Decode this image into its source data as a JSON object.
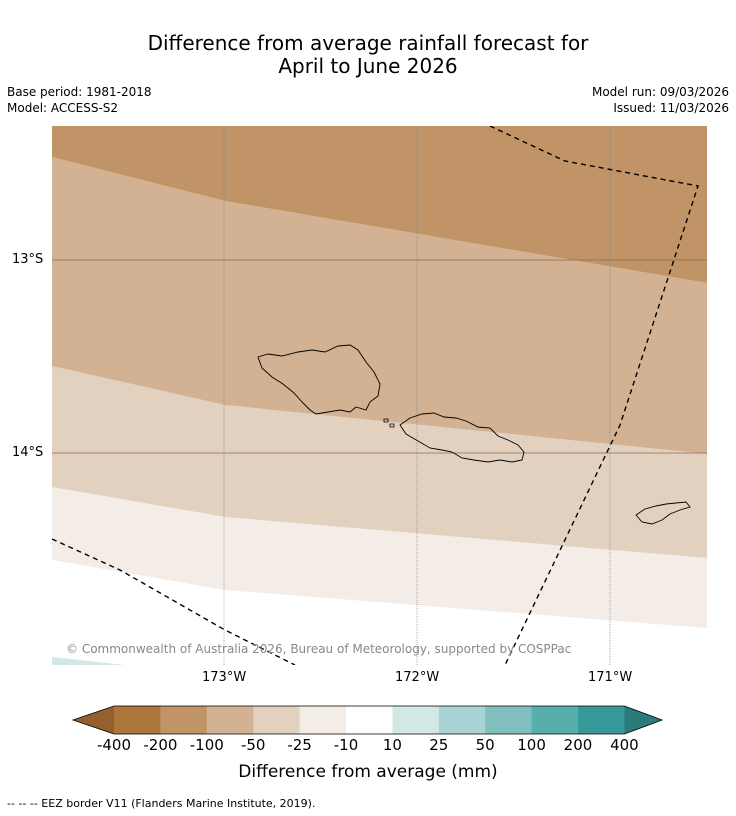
{
  "title_line1": "Difference from average rainfall forecast for",
  "title_line2": "April to June 2026",
  "meta_left": [
    "Base period: 1981-2018",
    "Model: ACCESS-S2"
  ],
  "meta_right": [
    "Model run: 09/03/2026",
    "Issued: 11/03/2026"
  ],
  "lat_labels": [
    "13°S",
    "14°S"
  ],
  "lon_labels": [
    "173°W",
    "172°W",
    "171°W"
  ],
  "copyright": "© Commonwealth of Australia 2026, Bureau of Meteorology, supported by COSPPac",
  "colorbar": {
    "title": "Difference from average (mm)",
    "tick_labels": [
      "-400",
      "-200",
      "-100",
      "-50",
      "-25",
      "-10",
      "10",
      "25",
      "50",
      "100",
      "200",
      "400"
    ],
    "colors": [
      "#ad773c",
      "#c09467",
      "#d2b293",
      "#e3d1bf",
      "#f4ece6",
      "#ffffff",
      "#d1e8e7",
      "#aad3d3",
      "#82c0c0",
      "#58adad",
      "#349998"
    ],
    "under_color": "#955f2f",
    "over_color": "#2a7b7a"
  },
  "footer": "--  --  -- EEZ border V11 (Flanders Marine Institute, 2019)."
}
